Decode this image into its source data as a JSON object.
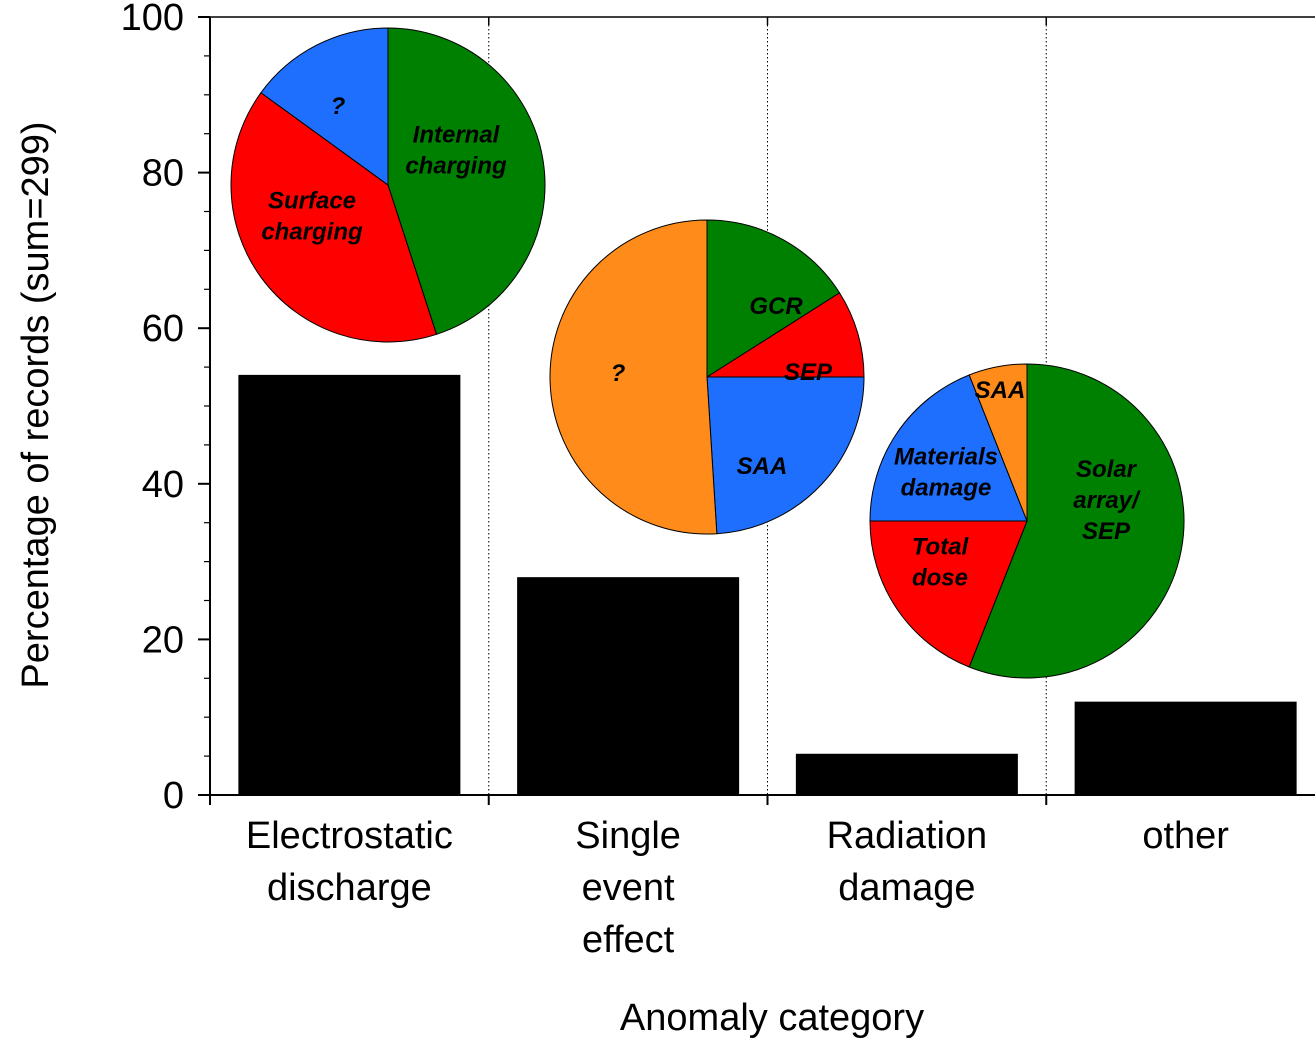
{
  "chart_data": {
    "type": "bar",
    "title": "",
    "xlabel": "Anomaly category",
    "ylabel": "Percentage of records (sum=299)",
    "ylim": [
      0,
      100
    ],
    "yticks": [
      "0",
      "20",
      "40",
      "60",
      "80",
      "100"
    ],
    "categories": [
      [
        "Electrostatic",
        "discharge"
      ],
      [
        "Single",
        "event",
        "effect"
      ],
      [
        "Radiation",
        "damage"
      ],
      [
        "other"
      ]
    ],
    "values": [
      54,
      28,
      5.3,
      12
    ],
    "bar_color": "#000000",
    "grid": false,
    "insets": [
      {
        "type": "pie",
        "category": "Electrostatic discharge",
        "slices": [
          {
            "label": "Internal charging",
            "lines": [
              "Internal",
              "charging"
            ],
            "value": 45,
            "color": "#008000"
          },
          {
            "label": "Surface charging",
            "lines": [
              "Surface",
              "charging"
            ],
            "value": 40,
            "color": "#ff0000"
          },
          {
            "label": "?",
            "lines": [
              "?"
            ],
            "value": 15,
            "color": "#1f6fff"
          }
        ]
      },
      {
        "type": "pie",
        "category": "Single event effect",
        "slices": [
          {
            "label": "GCR",
            "lines": [
              "GCR"
            ],
            "value": 16,
            "color": "#008000"
          },
          {
            "label": "SEP",
            "lines": [
              "SEP"
            ],
            "value": 9,
            "color": "#ff0000"
          },
          {
            "label": "SAA",
            "lines": [
              "SAA"
            ],
            "value": 24,
            "color": "#1f6fff"
          },
          {
            "label": "?",
            "lines": [
              "?"
            ],
            "value": 51,
            "color": "#ff8c1a"
          }
        ]
      },
      {
        "type": "pie",
        "category": "Radiation damage",
        "slices": [
          {
            "label": "Solar array/ SEP",
            "lines": [
              "Solar",
              "array/",
              "SEP"
            ],
            "value": 56,
            "color": "#008000"
          },
          {
            "label": "Total dose",
            "lines": [
              "Total",
              "dose"
            ],
            "value": 19,
            "color": "#ff0000"
          },
          {
            "label": "Materials damage",
            "lines": [
              "Materials",
              "damage"
            ],
            "value": 19,
            "color": "#1f6fff"
          },
          {
            "label": "SAA",
            "lines": [
              "SAA"
            ],
            "value": 6,
            "color": "#ff8c1a"
          }
        ]
      }
    ]
  }
}
